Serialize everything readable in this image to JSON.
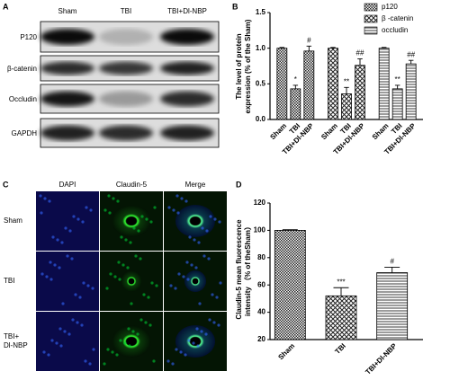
{
  "panel_a": {
    "label": "A",
    "columns": [
      "Sham",
      "TBI",
      "TBI+Dl-NBP"
    ],
    "rows": [
      "P120",
      "β-catenin",
      "Occludin",
      "GAPDH"
    ]
  },
  "panel_c": {
    "label": "C",
    "columns": [
      "DAPI",
      "Claudin-5",
      "Merge"
    ],
    "rows": [
      [
        "Sham"
      ],
      [
        "TBI"
      ],
      [
        "TBI+",
        "Dl-NBP"
      ]
    ]
  },
  "chart_data": [
    {
      "type": "bar",
      "panel_label": "B",
      "ylabel": [
        "The level of protein",
        "expression (% of the Sham)"
      ],
      "categories": [
        "Sham",
        "TBI",
        "TBI+Dl-NBP"
      ],
      "series": [
        {
          "name": "p120",
          "color": "#000000",
          "pattern": "checker",
          "values": [
            1.0,
            0.43,
            0.96
          ],
          "errors": [
            0.01,
            0.05,
            0.07
          ],
          "annotations": [
            null,
            "*",
            "#"
          ]
        },
        {
          "name": "β -catenin",
          "color": "#000000",
          "pattern": "crosshatch",
          "values": [
            1.0,
            0.36,
            0.76
          ],
          "errors": [
            0.01,
            0.09,
            0.09
          ],
          "annotations": [
            null,
            "**",
            "##"
          ]
        },
        {
          "name": "occludin",
          "color": "#000000",
          "pattern": "hlines",
          "values": [
            1.0,
            0.43,
            0.78
          ],
          "errors": [
            0.01,
            0.05,
            0.05
          ],
          "annotations": [
            null,
            "**",
            "##"
          ]
        }
      ],
      "ylim": [
        0,
        1.5
      ],
      "yticks": [
        {
          "value": 0,
          "label": "0.0"
        },
        {
          "value": 0.5,
          "label": "0.5"
        },
        {
          "value": 1,
          "label": "1.0"
        },
        {
          "value": 1.5,
          "label": "1.5"
        }
      ],
      "legend": "top-right"
    },
    {
      "type": "bar",
      "panel_label": "D",
      "ylabel": [
        "Claudin-5 mean fluorescence",
        "intensity （% of theSham）"
      ],
      "categories": [
        "Sham",
        "TBI",
        "TBI+Dl-NBP"
      ],
      "values": [
        100,
        52,
        69
      ],
      "errors": [
        0.5,
        6,
        4
      ],
      "annotations": [
        null,
        "***",
        "#"
      ],
      "patterns": [
        "checker",
        "crosshatch",
        "hlines"
      ],
      "color": "#000000",
      "ylim": [
        20,
        120
      ],
      "yticks": [
        20,
        40,
        60,
        80,
        100,
        120
      ]
    }
  ]
}
